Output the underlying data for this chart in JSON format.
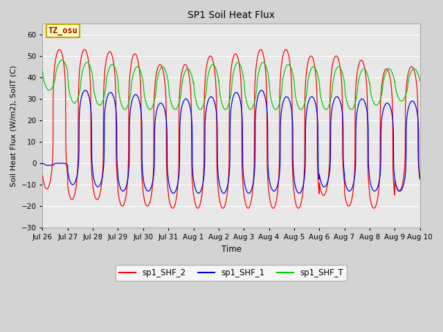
{
  "title": "SP1 Soil Heat Flux",
  "xlabel": "Time",
  "ylabel": "Soil Heat Flux (W/m2), SoilT (C)",
  "ylim": [
    -30,
    65
  ],
  "yticks": [
    -30,
    -20,
    -10,
    0,
    10,
    20,
    30,
    40,
    50,
    60
  ],
  "fig_bg_color": "#d3d3d3",
  "plot_bg": "#e8e8e8",
  "grid_color": "#ffffff",
  "tz_label": "TZ_osu",
  "tz_bg": "#ffffc0",
  "tz_border": "#c8a000",
  "legend_labels": [
    "sp1_SHF_2",
    "sp1_SHF_1",
    "sp1_SHF_T"
  ],
  "color_shf2": "#ff0000",
  "color_shf1": "#0000dd",
  "color_shft": "#00cc00",
  "n_days": 15,
  "points_per_day": 288,
  "x_tick_labels": [
    "Jul 26",
    "Jul 27",
    "Jul 28",
    "Jul 29",
    "Jul 30",
    "Jul 31",
    "Aug 1",
    "Aug 2",
    "Aug 3",
    "Aug 4",
    "Aug 5",
    "Aug 6",
    "Aug 7",
    "Aug 8",
    "Aug 9",
    "Aug 10"
  ],
  "shf2_peaks": [
    53,
    53,
    52,
    51,
    46,
    46,
    50,
    51,
    53,
    53,
    50,
    50,
    48,
    44,
    45
  ],
  "shf2_troughs": [
    -12,
    -17,
    -17,
    -20,
    -20,
    -21,
    -21,
    -21,
    -21,
    -21,
    -21,
    -15,
    -20,
    -21,
    -13
  ],
  "shf1_peaks": [
    0,
    34,
    33,
    32,
    28,
    30,
    31,
    33,
    34,
    31,
    31,
    31,
    30,
    28,
    29
  ],
  "shf1_troughs": [
    -1,
    -10,
    -11,
    -13,
    -13,
    -14,
    -14,
    -14,
    -14,
    -13,
    -14,
    -11,
    -13,
    -13,
    -13
  ],
  "shft_peaks": [
    48,
    47,
    46,
    45,
    45,
    44,
    46,
    47,
    47,
    46,
    45,
    45,
    44,
    44,
    44
  ],
  "shft_troughs": [
    34,
    28,
    27,
    25,
    25,
    25,
    25,
    25,
    25,
    25,
    25,
    25,
    25,
    27,
    29
  ],
  "shf2_peak_phase": 0.42,
  "shf1_peak_phase": 0.45,
  "shft_peak_phase": 0.52,
  "sharpness": 3.5
}
